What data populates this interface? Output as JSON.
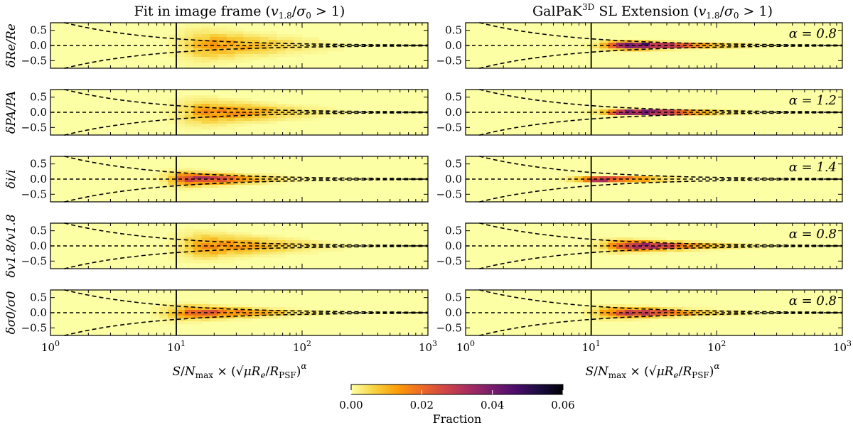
{
  "titles": {
    "left": "Fit in image frame (v1.8/σ0 > 1)",
    "right": "GalPaK3D SL Extension (v1.8/σ0 > 1)"
  },
  "xlabel": "S/Nmax × (√μ Re/RPSF)^α",
  "ylabels": [
    "δRe/Re",
    "δPA/PA",
    "δi/i",
    "δv1.8/v1.8",
    "δσ0/σ0"
  ],
  "alpha_labels": [
    "α = 0.8",
    "α = 1.2",
    "α = 1.4",
    "α = 0.8",
    "α = 0.8"
  ],
  "colorbar": {
    "label": "Fraction",
    "ticks": [
      "0.00",
      "0.02",
      "0.04",
      "0.06"
    ],
    "range": [
      0,
      0.06
    ],
    "colormap": "inferno_r",
    "colors": [
      "#fcffa4",
      "#f7d13d",
      "#fb9b06",
      "#ed6925",
      "#cf4446",
      "#a52c60",
      "#781c6d",
      "#4a0c6b",
      "#1b0c41",
      "#000004"
    ]
  },
  "chart_data": [
    {
      "type": "heatmap",
      "column": "left",
      "panels": [
        {
          "ylabel": "δRe/Re",
          "center_x": 1.3,
          "width_dex": 0.45,
          "spread": 0.55,
          "peak": 0.012
        },
        {
          "ylabel": "δPA/PA",
          "center_x": 1.3,
          "width_dex": 0.45,
          "spread": 0.45,
          "peak": 0.015
        },
        {
          "ylabel": "δi/i",
          "center_x": 1.15,
          "width_dex": 0.35,
          "spread": 0.25,
          "peak": 0.03
        },
        {
          "ylabel": "δv1.8/v1.8",
          "center_x": 1.3,
          "width_dex": 0.45,
          "spread": 0.45,
          "peak": 0.015
        },
        {
          "ylabel": "δσ0/σ0",
          "center_x": 1.2,
          "width_dex": 0.45,
          "spread": 0.25,
          "peak": 0.022
        }
      ],
      "x_scale": "log",
      "xlim": [
        1,
        1000
      ],
      "ylim": [
        -0.75,
        0.75
      ],
      "yticks": [
        0.5,
        0.0,
        -0.5
      ],
      "xticks": [
        "10^0",
        "10^1",
        "10^2",
        "10^3"
      ],
      "vline_x": 10,
      "envelope": "y = ±0.75 at x = 1.3, tightening as x^-0.6"
    },
    {
      "type": "heatmap",
      "column": "right",
      "panels": [
        {
          "ylabel": "δRe/Re",
          "alpha": 0.8,
          "center_x": 1.35,
          "width_dex": 0.4,
          "spread": 0.15,
          "peak": 0.05
        },
        {
          "ylabel": "δPA/PA",
          "alpha": 1.2,
          "center_x": 1.35,
          "width_dex": 0.4,
          "spread": 0.1,
          "peak": 0.06
        },
        {
          "ylabel": "δi/i",
          "alpha": 1.4,
          "center_x": 1.1,
          "width_dex": 0.35,
          "spread": 0.08,
          "peak": 0.055
        },
        {
          "ylabel": "δv1.8/v1.8",
          "alpha": 0.8,
          "center_x": 1.35,
          "width_dex": 0.4,
          "spread": 0.2,
          "peak": 0.035
        },
        {
          "ylabel": "δσ0/σ0",
          "alpha": 0.8,
          "center_x": 1.3,
          "width_dex": 0.4,
          "spread": 0.2,
          "peak": 0.03
        }
      ],
      "x_scale": "log",
      "xlim": [
        1,
        1000
      ],
      "ylim": [
        -0.75,
        0.75
      ],
      "yticks": [
        0.5,
        0.0,
        -0.5
      ],
      "xticks": [
        "10^0",
        "10^1",
        "10^2",
        "10^3"
      ],
      "vline_x": 10,
      "envelope": "y = ±0.75 at x = 1.3, tightening as x^-0.6"
    }
  ]
}
